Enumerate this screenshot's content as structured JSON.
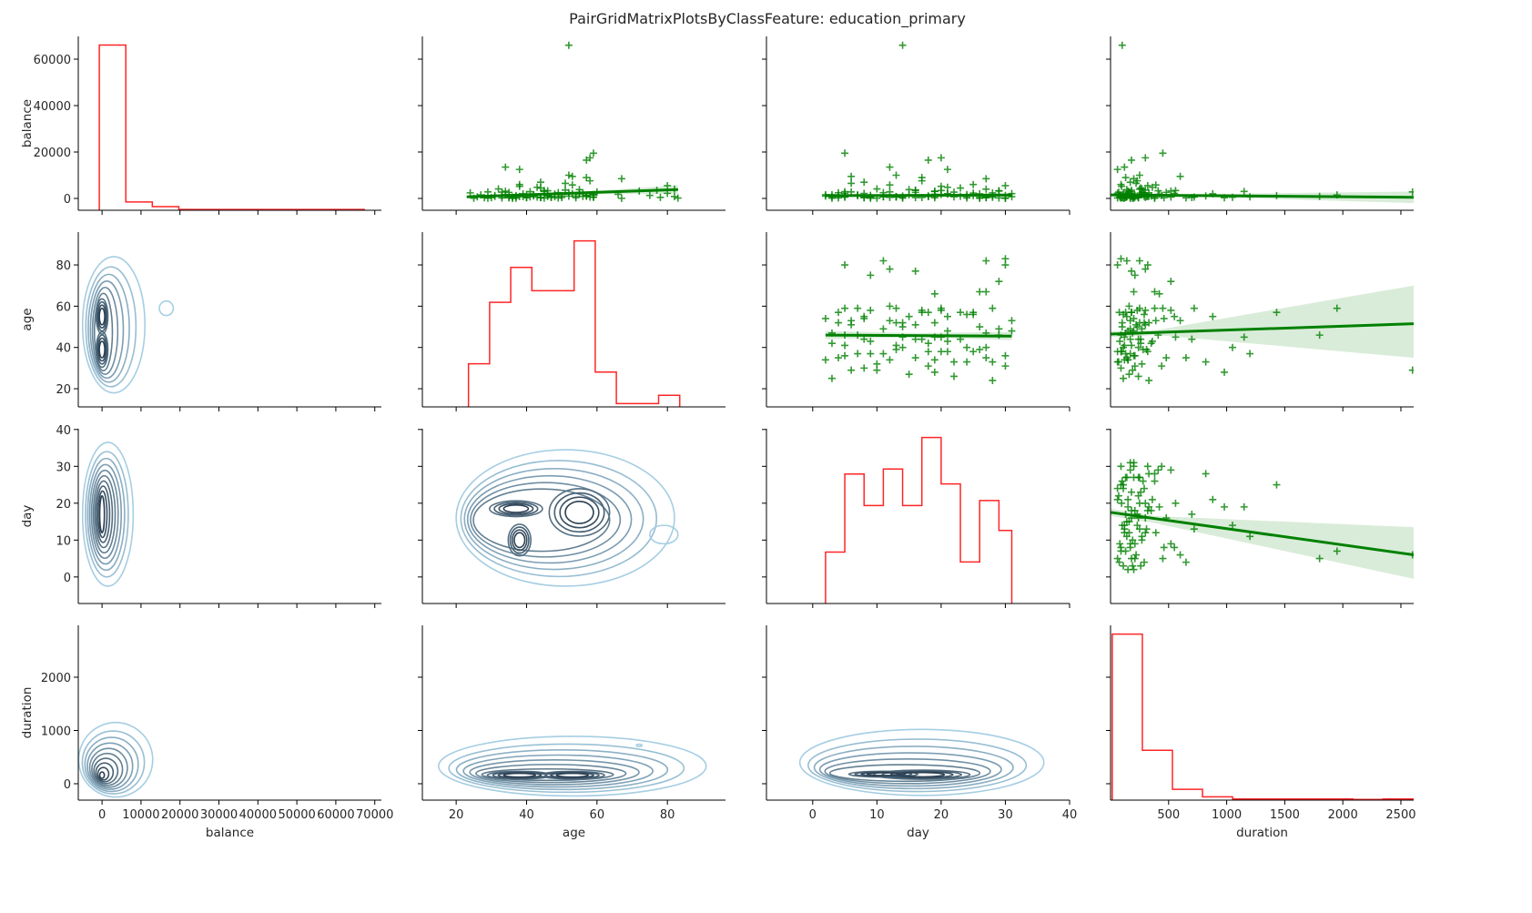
{
  "chart_data": {
    "type": "pair_grid",
    "title": "PairGridMatrixPlotsByClassFeature: education_primary",
    "variables": [
      "balance",
      "age",
      "day",
      "duration"
    ],
    "axes": {
      "balance": {
        "range": [
          -6100,
          71700
        ],
        "ticks": [
          0,
          10000,
          20000,
          30000,
          40000,
          50000,
          60000,
          70000
        ],
        "yticks": [
          0,
          20000,
          40000,
          60000
        ],
        "yrange": [
          -5100,
          69800
        ]
      },
      "age": {
        "range": [
          10.4,
          96.5
        ],
        "ticks": [
          20,
          40,
          60,
          80
        ],
        "yticks": [
          20,
          40,
          60,
          80
        ],
        "yrange": [
          11.2,
          95.9
        ]
      },
      "day": {
        "range": [
          -7.2,
          40
        ],
        "ticks": [
          0,
          10,
          20,
          30,
          40
        ],
        "yticks": [
          0,
          10,
          20,
          30,
          40
        ],
        "yrange": [
          -7.2,
          40.2
        ]
      },
      "duration": {
        "range": [
          0,
          2610
        ],
        "ticks": [
          500,
          1000,
          1500,
          2000,
          2500
        ],
        "yticks": [
          0,
          1000,
          2000
        ],
        "yrange": [
          -308,
          2974
        ]
      }
    },
    "colors": {
      "hist": "#ff0000",
      "scatter": "#008000",
      "regression_ci": "#008000",
      "kde_light": "#a6cee3",
      "kde_dark": "#2b3f52"
    },
    "diagonal_histograms": {
      "balance": {
        "edges": [
          -700,
          6100,
          12900,
          19700,
          26500,
          33300,
          40100,
          46900,
          53700,
          60500,
          67300
        ],
        "relative_heights": [
          1,
          0.05,
          0.022,
          0.005,
          0.005,
          0.005,
          0.005,
          0.005,
          0.005,
          0.005
        ]
      },
      "age": {
        "edges": [
          23.5,
          29.5,
          35.5,
          41.5,
          47.5,
          53.5,
          59.5,
          65.5,
          71.5,
          77.5,
          83.5
        ],
        "relative_heights": [
          0.26,
          0.63,
          0.84,
          0.7,
          0.7,
          1,
          0.21,
          0.02,
          0.02,
          0.07
        ]
      },
      "day": {
        "edges": [
          2,
          5,
          8,
          11,
          14,
          17,
          20,
          23,
          26,
          29,
          31
        ],
        "relative_heights": [
          0.31,
          0.78,
          0.59,
          0.81,
          0.59,
          1,
          0.72,
          0.25,
          0.62,
          0.44
        ]
      },
      "duration": {
        "edges": [
          15,
          274,
          533,
          792,
          1051,
          1310,
          1569,
          1828,
          2087,
          2346,
          2605
        ],
        "relative_heights": [
          1,
          0.3,
          0.065,
          0.02,
          0.007,
          0.007,
          0.007,
          0.007,
          0.004,
          0.007
        ]
      }
    },
    "records_columns": [
      "balance",
      "age",
      "day",
      "duration"
    ],
    "records": [
      [
        66000,
        52,
        14,
        100
      ],
      [
        19500,
        59,
        5,
        450
      ],
      [
        17500,
        58,
        20,
        300
      ],
      [
        16500,
        57,
        18,
        180
      ],
      [
        13500,
        34,
        12,
        120
      ],
      [
        12500,
        38,
        21,
        60
      ],
      [
        10000,
        52,
        13,
        250
      ],
      [
        9500,
        53,
        6,
        600
      ],
      [
        8500,
        67,
        27,
        200
      ],
      [
        9000,
        57,
        17,
        130
      ],
      [
        7000,
        44,
        8,
        170
      ],
      [
        6000,
        38,
        25,
        90
      ],
      [
        5500,
        80,
        30,
        320
      ],
      [
        4000,
        82,
        27,
        250
      ],
      [
        3500,
        77,
        16,
        180
      ],
      [
        3000,
        45,
        19,
        1150
      ],
      [
        2800,
        29,
        6,
        2600
      ],
      [
        1500,
        59,
        7,
        1950
      ],
      [
        900,
        46,
        5,
        1800
      ],
      [
        1200,
        57,
        25,
        1430
      ],
      [
        700,
        37,
        11,
        1200
      ],
      [
        500,
        40,
        14,
        1050
      ],
      [
        300,
        28,
        19,
        980
      ],
      [
        2000,
        55,
        21,
        880
      ],
      [
        1100,
        33,
        28,
        820
      ],
      [
        600,
        59,
        13,
        720
      ],
      [
        400,
        44,
        17,
        700
      ],
      [
        250,
        35,
        4,
        650
      ],
      [
        150,
        83,
        30,
        90
      ],
      [
        2200,
        80,
        5,
        60
      ],
      [
        800,
        82,
        11,
        140
      ],
      [
        1300,
        75,
        9,
        210
      ],
      [
        450,
        78,
        12,
        300
      ],
      [
        3200,
        72,
        29,
        520
      ],
      [
        50,
        67,
        26,
        380
      ],
      [
        1800,
        66,
        19,
        420
      ],
      [
        100,
        25,
        3,
        110
      ],
      [
        700,
        26,
        22,
        240
      ],
      [
        1500,
        27,
        15,
        160
      ],
      [
        2400,
        24,
        28,
        330
      ],
      [
        350,
        30,
        8,
        90
      ],
      [
        900,
        31,
        18,
        210
      ],
      [
        4100,
        32,
        10,
        270
      ],
      [
        200,
        33,
        24,
        60
      ],
      [
        1600,
        34,
        2,
        150
      ],
      [
        2600,
        35,
        16,
        480
      ],
      [
        50,
        36,
        30,
        200
      ],
      [
        1200,
        37,
        7,
        130
      ],
      [
        5200,
        38,
        20,
        95
      ],
      [
        800,
        39,
        13,
        310
      ],
      [
        300,
        40,
        27,
        240
      ],
      [
        2900,
        41,
        5,
        180
      ],
      [
        1100,
        42,
        18,
        350
      ],
      [
        600,
        43,
        9,
        80
      ],
      [
        4500,
        44,
        23,
        260
      ],
      [
        150,
        45,
        14,
        120
      ],
      [
        3300,
        46,
        29,
        410
      ],
      [
        700,
        47,
        3,
        190
      ],
      [
        1900,
        48,
        21,
        150
      ],
      [
        2500,
        49,
        11,
        270
      ],
      [
        400,
        50,
        26,
        100
      ],
      [
        6500,
        51,
        6,
        220
      ],
      [
        1000,
        52,
        19,
        330
      ],
      [
        2100,
        53,
        31,
        170
      ],
      [
        300,
        54,
        8,
        460
      ],
      [
        3800,
        55,
        15,
        140
      ],
      [
        900,
        56,
        24,
        290
      ],
      [
        1400,
        57,
        4,
        75
      ],
      [
        7600,
        58,
        17,
        230
      ],
      [
        500,
        59,
        28,
        380
      ],
      [
        2800,
        60,
        12,
        160
      ],
      [
        1700,
        59,
        20,
        250
      ],
      [
        600,
        58,
        9,
        520
      ],
      [
        2300,
        56,
        25,
        110
      ],
      [
        1000,
        54,
        2,
        200
      ],
      [
        3600,
        51,
        16,
        300
      ],
      [
        200,
        49,
        29,
        170
      ],
      [
        1300,
        46,
        7,
        90
      ],
      [
        4800,
        43,
        21,
        360
      ],
      [
        700,
        41,
        13,
        120
      ],
      [
        2000,
        39,
        26,
        280
      ],
      [
        550,
        36,
        5,
        210
      ],
      [
        3100,
        34,
        19,
        150
      ],
      [
        1250,
        31,
        30,
        440
      ],
      [
        100,
        29,
        10,
        190
      ],
      [
        2700,
        33,
        22,
        70
      ],
      [
        850,
        38,
        18,
        320
      ],
      [
        1550,
        42,
        3,
        260
      ],
      [
        400,
        47,
        27,
        130
      ],
      [
        5800,
        53,
        12,
        390
      ],
      [
        950,
        57,
        23,
        180
      ],
      [
        2150,
        55,
        8,
        550
      ],
      [
        350,
        44,
        16,
        240
      ],
      [
        1650,
        40,
        24,
        110
      ],
      [
        750,
        48,
        31,
        200
      ],
      [
        2450,
        52,
        4,
        290
      ],
      [
        120,
        37,
        9,
        170
      ],
      [
        3400,
        45,
        20,
        560
      ],
      [
        1050,
        50,
        14,
        230
      ],
      [
        650,
        35,
        27,
        140
      ]
    ],
    "regressions": [
      {
        "x": "age",
        "y": "balance",
        "line": [
          [
            23,
            700
          ],
          [
            83,
            3800
          ]
        ],
        "ci": [
          [
            23,
            200,
            1300
          ],
          [
            53,
            1800,
            2600
          ],
          [
            83,
            2000,
            5700
          ]
        ]
      },
      {
        "x": "day",
        "y": "balance",
        "line": [
          [
            2,
            1200
          ],
          [
            31,
            1450
          ]
        ],
        "ci": [
          [
            2,
            500,
            1900
          ],
          [
            16,
            1100,
            1600
          ],
          [
            31,
            700,
            2200
          ]
        ]
      },
      {
        "x": "duration",
        "y": "balance",
        "line": [
          [
            5,
            1500
          ],
          [
            2610,
            500
          ]
        ],
        "ci": [
          [
            5,
            1000,
            2000
          ],
          [
            500,
            1100,
            1700
          ],
          [
            2610,
            -2000,
            3000
          ]
        ]
      },
      {
        "x": "day",
        "y": "age",
        "line": [
          [
            2,
            46
          ],
          [
            31,
            45.5
          ]
        ],
        "ci": [
          [
            2,
            44,
            48
          ],
          [
            16,
            45,
            47
          ],
          [
            31,
            43.5,
            47.5
          ]
        ]
      },
      {
        "x": "duration",
        "y": "age",
        "line": [
          [
            5,
            46.5
          ],
          [
            2610,
            51.5
          ]
        ],
        "ci": [
          [
            5,
            45,
            48
          ],
          [
            400,
            46,
            48.5
          ],
          [
            2610,
            35,
            70
          ]
        ]
      },
      {
        "x": "duration",
        "y": "day",
        "line": [
          [
            5,
            17.5
          ],
          [
            2610,
            6
          ]
        ],
        "ci": [
          [
            5,
            16.5,
            18.5
          ],
          [
            400,
            14.5,
            16.5
          ],
          [
            2610,
            -0.5,
            13.5
          ]
        ]
      }
    ],
    "kde": [
      {
        "x": "balance",
        "y": "age",
        "levels": 10,
        "outer": {
          "cx": 3000,
          "cy": 51,
          "rx": 8000,
          "ry": 33
        },
        "peaks": [
          {
            "x": 0,
            "y": 55,
            "rx": 700,
            "ry": 4
          },
          {
            "x": 0,
            "y": 39,
            "rx": 700,
            "ry": 4
          }
        ],
        "islands": [
          {
            "x": 16500,
            "y": 59,
            "rx": 1800,
            "ry": 3.5
          }
        ]
      },
      {
        "x": "balance",
        "y": "day",
        "levels": 10,
        "outer": {
          "cx": 1500,
          "cy": 17,
          "rx": 6500,
          "ry": 19.5
        },
        "peaks": [
          {
            "x": 0,
            "y": 17,
            "rx": 600,
            "ry": 5
          }
        ]
      },
      {
        "x": "balance",
        "y": "duration",
        "levels": 10,
        "outer": {
          "cx": 3500,
          "cy": 450,
          "rx": 9500,
          "ry": 700
        },
        "peaks": [
          {
            "x": 0,
            "y": 160,
            "rx": 600,
            "ry": 60
          }
        ]
      },
      {
        "x": "age",
        "y": "day",
        "levels": 10,
        "outer": {
          "cx": 51,
          "cy": 16,
          "rx": 31,
          "ry": 18.5
        },
        "peaks": [
          {
            "x": 55,
            "y": 17.5,
            "rx": 4,
            "ry": 3
          },
          {
            "x": 37,
            "y": 18.5,
            "rx": 3.5,
            "ry": 1
          },
          {
            "x": 38,
            "y": 10,
            "rx": 1.5,
            "ry": 2
          }
        ],
        "islands": [
          {
            "x": 79,
            "y": 11.5,
            "rx": 4,
            "ry": 2.5
          }
        ]
      },
      {
        "x": "age",
        "y": "duration",
        "levels": 11,
        "outer": {
          "cx": 53,
          "cy": 330,
          "rx": 38,
          "ry": 560
        },
        "peaks": [
          {
            "x": 38,
            "y": 160,
            "rx": 4.5,
            "ry": 35
          },
          {
            "x": 53,
            "y": 160,
            "rx": 4.5,
            "ry": 35
          }
        ],
        "islands": [
          {
            "x": 72,
            "y": 720,
            "rx": 0.8,
            "ry": 20
          }
        ]
      },
      {
        "x": "day",
        "y": "duration",
        "levels": 10,
        "outer": {
          "cx": 17,
          "cy": 400,
          "rx": 19,
          "ry": 620
        },
        "peaks": [
          {
            "x": 17,
            "y": 170,
            "rx": 3.5,
            "ry": 40
          },
          {
            "x": 11,
            "y": 180,
            "rx": 2.5,
            "ry": 25
          }
        ]
      }
    ]
  }
}
